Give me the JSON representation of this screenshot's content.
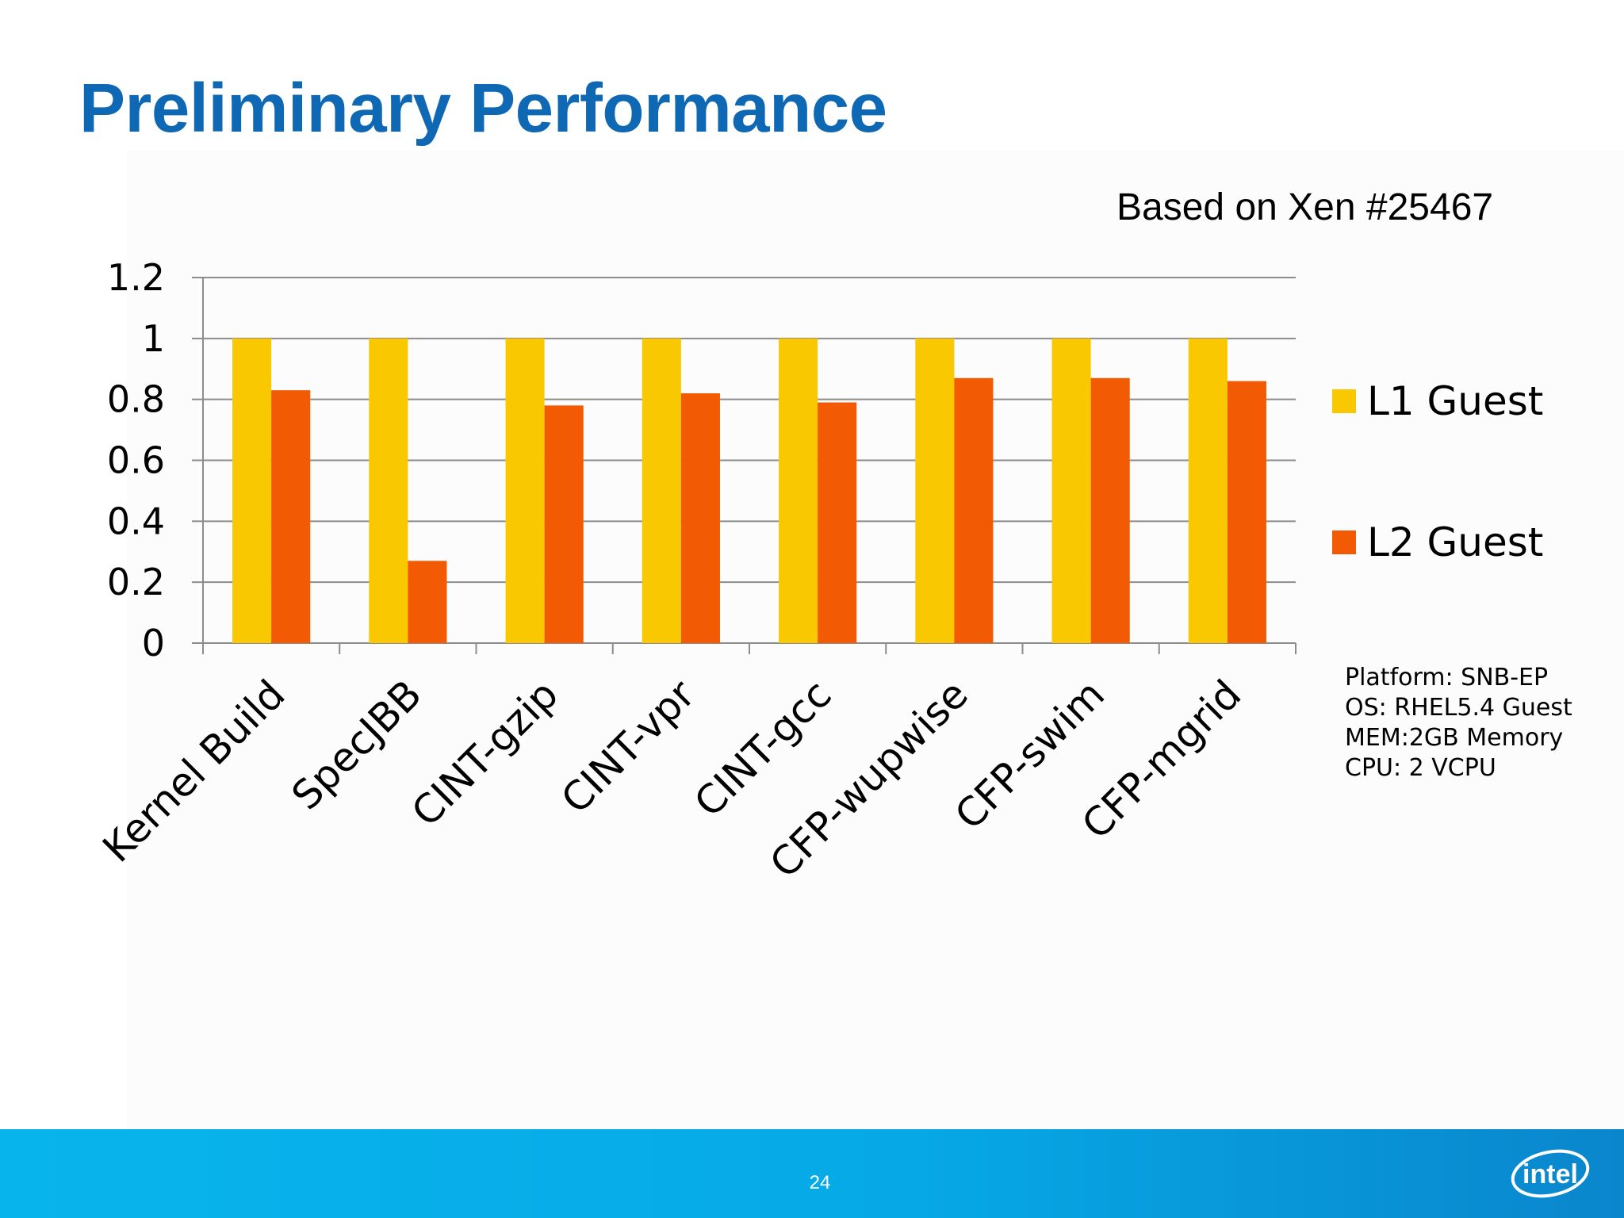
{
  "slide": {
    "title": "Preliminary Performance",
    "subtitle": "Based on Xen #25467",
    "page_number": "24",
    "logo_text": "intel"
  },
  "platform_info": [
    "Platform: SNB-EP",
    "OS: RHEL5.4 Guest",
    "MEM:2GB Memory",
    "CPU: 2 VCPU"
  ],
  "colors": {
    "title": "#0f68b4",
    "l1_guest": "#f9c800",
    "l2_guest": "#f25a04",
    "footer": "#08b4ec"
  },
  "chart_data": {
    "type": "bar",
    "categories": [
      "Kernel Build",
      "SpecJBB",
      "CINT-gzip",
      "CINT-vpr",
      "CINT-gcc",
      "CFP-wupwise",
      "CFP-swim",
      "CFP-mgrid"
    ],
    "series": [
      {
        "name": "L1 Guest",
        "color": "#f9c800",
        "values": [
          1,
          1,
          1,
          1,
          1,
          1,
          1,
          1
        ]
      },
      {
        "name": "L2 Guest",
        "color": "#f25a04",
        "values": [
          0.83,
          0.27,
          0.78,
          0.82,
          0.79,
          0.87,
          0.87,
          0.86
        ]
      }
    ],
    "yticks": [
      "0",
      "0.2",
      "0.4",
      "0.6",
      "0.8",
      "1",
      "1.2"
    ],
    "ylim": [
      0,
      1.2
    ],
    "grid": true,
    "legend": "right"
  }
}
